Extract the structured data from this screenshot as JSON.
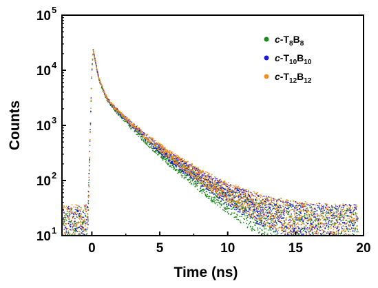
{
  "chart_data": {
    "type": "scatter",
    "title": "",
    "xlabel": "Time (ns)",
    "ylabel": "Counts",
    "xlim": [
      -2.2,
      20
    ],
    "ylim": [
      10,
      100000
    ],
    "y_scale": "log",
    "grid": false,
    "legend_position": "top-right",
    "x_ticks": [
      {
        "value": 0,
        "label": "0"
      },
      {
        "value": 5,
        "label": "5"
      },
      {
        "value": 10,
        "label": "10"
      },
      {
        "value": 15,
        "label": "15"
      },
      {
        "value": 20,
        "label": "20"
      }
    ],
    "y_ticks": [
      {
        "value": 10,
        "base": "10",
        "exp": "1"
      },
      {
        "value": 100,
        "base": "10",
        "exp": "2"
      },
      {
        "value": 1000,
        "base": "10",
        "exp": "3"
      },
      {
        "value": 10000,
        "base": "10",
        "exp": "4"
      },
      {
        "value": 100000,
        "base": "10",
        "exp": "5"
      }
    ],
    "series": [
      {
        "name": "c-T8B8",
        "label_prefix": "c",
        "label_rest": "-T",
        "sub1": "8",
        "label_mid": "B",
        "sub2": "8",
        "color": "#1a8a1a",
        "baseline": 12,
        "x": [
          -2,
          -1,
          -0.5,
          -0.3,
          0,
          0.1,
          0.2,
          0.5,
          1,
          1.5,
          2,
          3,
          4,
          5,
          6,
          7,
          8,
          9,
          10,
          11,
          12,
          13,
          14,
          15,
          16,
          17,
          18,
          19,
          19.6
        ],
        "y": [
          12,
          12,
          12,
          14,
          9000,
          23500,
          17000,
          7000,
          3300,
          2200,
          1600,
          900,
          520,
          320,
          200,
          130,
          88,
          60,
          42,
          31,
          23,
          19,
          16,
          14,
          13,
          12,
          12,
          12,
          12
        ]
      },
      {
        "name": "c-T10B10",
        "label_prefix": "c",
        "label_rest": "-T",
        "sub1": "10",
        "label_mid": "B",
        "sub2": "10",
        "color": "#1c1cd6",
        "baseline": 14,
        "x": [
          -2,
          -1,
          -0.5,
          -0.3,
          0,
          0.1,
          0.2,
          0.5,
          1,
          1.5,
          2,
          3,
          4,
          5,
          6,
          7,
          8,
          9,
          10,
          11,
          12,
          13,
          14,
          15,
          16,
          17,
          18,
          19,
          19.6
        ],
        "y": [
          14,
          14,
          14,
          16,
          9500,
          23500,
          17500,
          7300,
          3500,
          2300,
          1700,
          1000,
          590,
          370,
          240,
          160,
          110,
          78,
          56,
          42,
          32,
          26,
          22,
          19,
          17,
          16,
          15,
          15,
          15
        ]
      },
      {
        "name": "c-T12B12",
        "label_prefix": "c",
        "label_rest": "-T",
        "sub1": "12",
        "label_mid": "B",
        "sub2": "12",
        "color": "#f5901e",
        "baseline": 15,
        "x": [
          -2,
          -1,
          -0.5,
          -0.3,
          0,
          0.1,
          0.2,
          0.5,
          1,
          1.5,
          2,
          3,
          4,
          5,
          6,
          7,
          8,
          9,
          10,
          11,
          12,
          13,
          14,
          15,
          16,
          17,
          18,
          19,
          19.6
        ],
        "y": [
          15,
          15,
          15,
          17,
          9500,
          23500,
          17500,
          7400,
          3500,
          2350,
          1750,
          1050,
          620,
          400,
          260,
          175,
          120,
          85,
          62,
          46,
          35,
          28,
          23,
          20,
          18,
          16,
          16,
          16,
          16
        ]
      }
    ]
  }
}
